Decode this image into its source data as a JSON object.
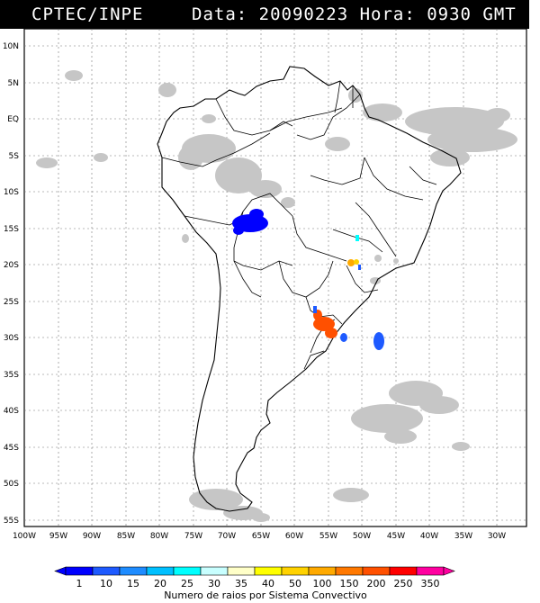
{
  "header": {
    "left": "CPTEC/INPE",
    "right": "Data: 20090223 Hora: 0930 GMT"
  },
  "map": {
    "lat_labels": [
      "10N",
      "5N",
      "EQ",
      "5S",
      "10S",
      "15S",
      "20S",
      "25S",
      "30S",
      "35S",
      "40S",
      "45S",
      "50S",
      "55S"
    ],
    "lon_labels": [
      "100W",
      "95W",
      "90W",
      "85W",
      "80W",
      "75W",
      "70W",
      "65W",
      "60W",
      "55W",
      "50W",
      "45W",
      "40W",
      "35W",
      "30W"
    ],
    "cloud_color": "#c8c8c8",
    "land_outline_color": "#000000"
  },
  "legend": {
    "title": "Numero de raios por Sistema Convectivo",
    "values": [
      "1",
      "10",
      "15",
      "20",
      "25",
      "30",
      "35",
      "40",
      "50",
      "100",
      "150",
      "200",
      "250",
      "350"
    ],
    "colors": [
      "#0000ff",
      "#1e5aff",
      "#1e8cff",
      "#00c0ff",
      "#00ffff",
      "#c8ffff",
      "#ffffc8",
      "#ffff00",
      "#ffd200",
      "#ffaa00",
      "#ff7800",
      "#ff5000",
      "#ff0000",
      "#ff00a0"
    ]
  },
  "systems": [
    {
      "name": "bolivia-cluster",
      "count_color": "#0000ff"
    },
    {
      "name": "paraguay-cluster",
      "count_color": "#ff5000"
    },
    {
      "name": "goias-cluster",
      "count_color": "#00ffff"
    },
    {
      "name": "minas-cluster",
      "count_color": "#ffaa00"
    },
    {
      "name": "rs-cluster",
      "count_color": "#1e5aff"
    },
    {
      "name": "atlantic-cluster",
      "count_color": "#1e5aff"
    }
  ]
}
